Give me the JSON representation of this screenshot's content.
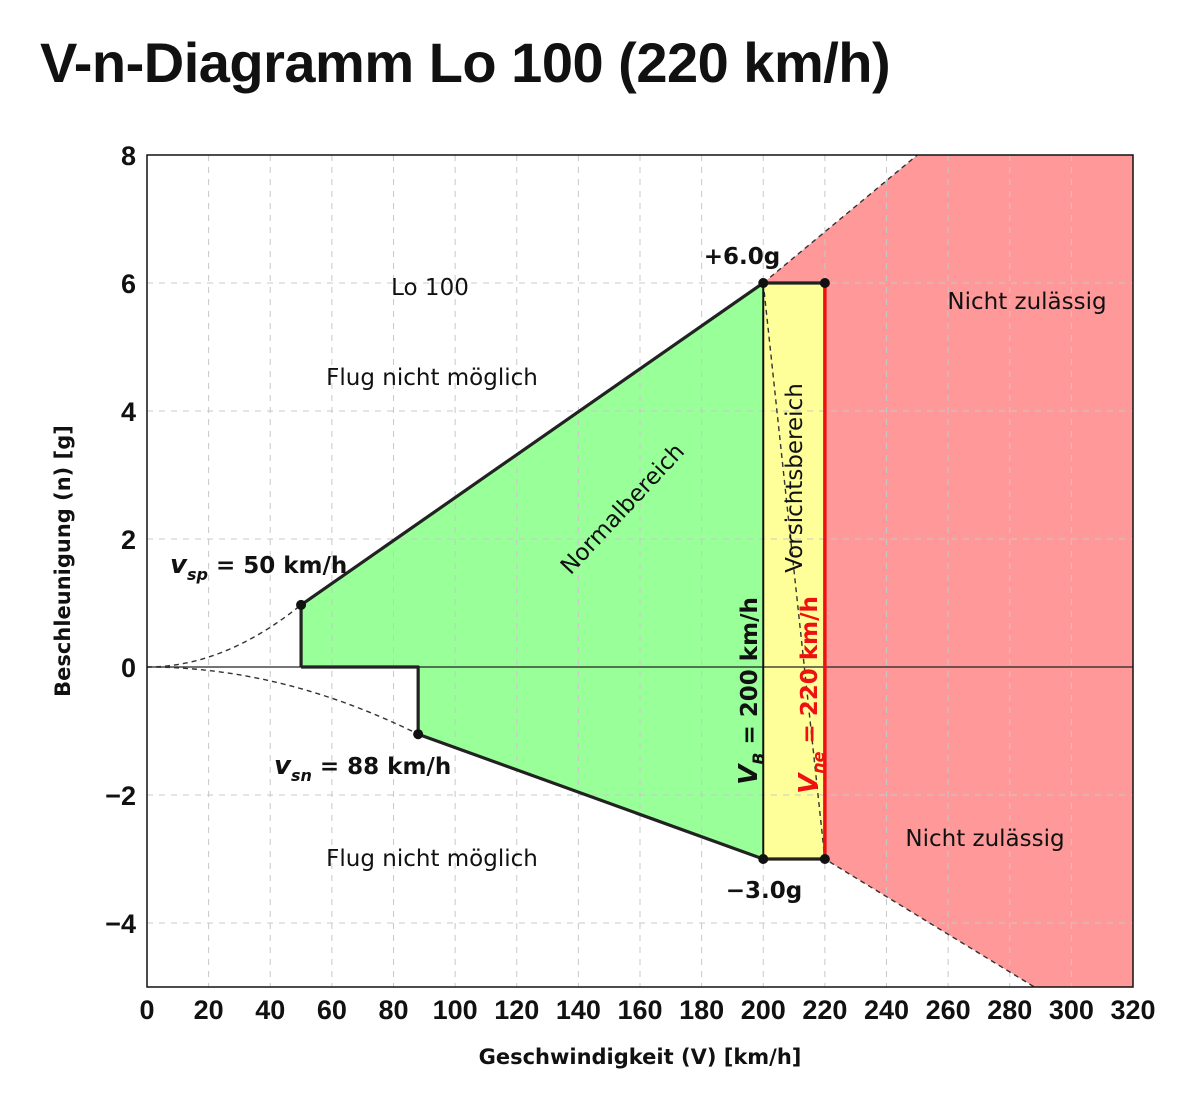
{
  "chart_data": {
    "type": "area",
    "title": "V-n-Diagramm Lo 100 (220 km/h)",
    "xlabel": "Geschwindigkeit (V) [km/h]",
    "ylabel": "Beschleunigung (n) [g]",
    "xlim": [
      0,
      320
    ],
    "ylim": [
      -5,
      8
    ],
    "xticks": [
      0,
      20,
      40,
      60,
      80,
      100,
      120,
      140,
      160,
      180,
      200,
      220,
      240,
      260,
      280,
      300,
      320
    ],
    "yticks": [
      {
        "value": 8,
        "label": "8"
      },
      {
        "value": 6,
        "label": "6"
      },
      {
        "value": 4,
        "label": "4"
      },
      {
        "value": 2,
        "label": "2"
      },
      {
        "value": 0,
        "label": "0"
      },
      {
        "value": -2,
        "label": "−2"
      },
      {
        "value": -4,
        "label": "−4"
      }
    ],
    "grid": true,
    "colors": {
      "normal": "#99ff99",
      "caution": "#ffff99",
      "forbidden": "#ff9999",
      "vne_line": "#ee1111",
      "outline": "#222222"
    },
    "regions": {
      "normal": [
        [
          50,
          0
        ],
        [
          50,
          0.97
        ],
        [
          200,
          6.0
        ],
        [
          200,
          -3.0
        ],
        [
          88,
          -1.05
        ],
        [
          88,
          0
        ]
      ],
      "caution": [
        [
          200,
          6.0
        ],
        [
          220,
          6.0
        ],
        [
          220,
          -3.0
        ],
        [
          200,
          -3.0
        ]
      ],
      "forbidden_upper_edge": [
        [
          200,
          6.0
        ],
        [
          250,
          8
        ]
      ],
      "forbidden_lower_edge": [
        [
          220,
          -3.0
        ],
        [
          288,
          -5
        ]
      ]
    },
    "stall_curves": {
      "positive_end": [
        50,
        0.97
      ],
      "negative_end": [
        88,
        -1.05
      ]
    },
    "points": [
      {
        "x": 50,
        "y": 0.97
      },
      {
        "x": 88,
        "y": -1.05
      },
      {
        "x": 200,
        "y": 6.0
      },
      {
        "x": 220,
        "y": 6.0
      },
      {
        "x": 200,
        "y": -3.0
      },
      {
        "x": 220,
        "y": -3.0
      }
    ],
    "annotations": {
      "aircraft": "Lo 100",
      "no_flight_top": "Flug nicht möglich",
      "no_flight_bottom": "Flug nicht möglich",
      "not_allowed_top": "Nicht zulässig",
      "not_allowed_bottom": "Nicht zulässig",
      "normal_range": "Normalbereich",
      "caution_range": "Vorsichtsbereich",
      "max_load": "+6.0g",
      "min_load": "−3.0g",
      "vsp": {
        "symbol": "v",
        "sub": "sp",
        "text": " = 50 km/h"
      },
      "vsn": {
        "symbol": "v",
        "sub": "sn",
        "text": " = 88 km/h"
      },
      "vb": {
        "symbol": "V",
        "sub": "B",
        "text": " = 200 km/h"
      },
      "vne": {
        "symbol": "V",
        "sub": "ne",
        "text": " = 220 km/h"
      }
    }
  }
}
